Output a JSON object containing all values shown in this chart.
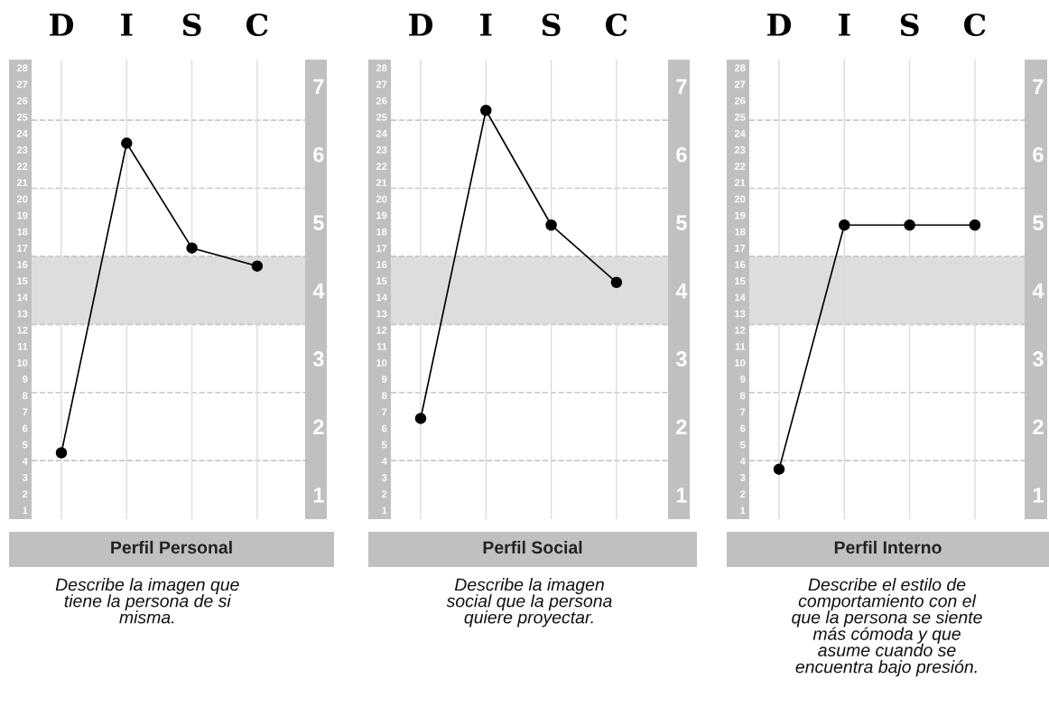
{
  "chart_data": [
    {
      "type": "line",
      "xlabel": "Perfil Personal",
      "categories": [
        "D",
        "I",
        "S",
        "C"
      ],
      "series": [
        {
          "color": "#000000",
          "values": [
            4.5,
            23.4,
            17.0,
            15.9
          ]
        }
      ],
      "marker": "circle",
      "line_style": "solid",
      "grid": "x",
      "ylim": [
        0.45,
        28.5
      ],
      "yticks": [
        1,
        2,
        3,
        4,
        5,
        6,
        7,
        8,
        9,
        10,
        11,
        12,
        13,
        14,
        15,
        16,
        17,
        18,
        19,
        20,
        21,
        22,
        23,
        24,
        25,
        26,
        27,
        28
      ],
      "y2lim": [
        0.64,
        7.39
      ],
      "y2ticks": [
        1,
        2,
        3,
        4,
        5,
        6,
        7
      ],
      "ref_lines": [
        {
          "axis": "y2",
          "value": 1.5,
          "line_style": "dashed",
          "color": "#c8c8c8"
        },
        {
          "axis": "y2",
          "value": 2.5,
          "line_style": "dashed",
          "color": "#c8c8c8"
        },
        {
          "axis": "y2",
          "value": 3.5,
          "line_style": "dashed",
          "color": "#c8c8c8"
        },
        {
          "axis": "y2",
          "value": 4.5,
          "line_style": "dashed",
          "color": "#c8c8c8"
        },
        {
          "axis": "y2",
          "value": 5.5,
          "line_style": "dashed",
          "color": "#c8c8c8"
        },
        {
          "axis": "y2",
          "value": 6.5,
          "line_style": "dashed",
          "color": "#c8c8c8"
        }
      ],
      "bands": [
        {
          "axis": "y2",
          "from": 3.5,
          "to": 4.5,
          "color": "#dddddd"
        }
      ],
      "annotations": [
        "Describe la imagen que\ntiene la persona de si\nmisma."
      ]
    },
    {
      "type": "line",
      "xlabel": "Perfil Social",
      "categories": [
        "D",
        "I",
        "S",
        "C"
      ],
      "series": [
        {
          "color": "#000000",
          "values": [
            6.6,
            25.4,
            18.4,
            14.9
          ]
        }
      ],
      "marker": "circle",
      "line_style": "solid",
      "grid": "x",
      "ylim": [
        0.45,
        28.5
      ],
      "yticks": [
        1,
        2,
        3,
        4,
        5,
        6,
        7,
        8,
        9,
        10,
        11,
        12,
        13,
        14,
        15,
        16,
        17,
        18,
        19,
        20,
        21,
        22,
        23,
        24,
        25,
        26,
        27,
        28
      ],
      "y2lim": [
        0.64,
        7.39
      ],
      "y2ticks": [
        1,
        2,
        3,
        4,
        5,
        6,
        7
      ],
      "ref_lines": [
        {
          "axis": "y2",
          "value": 1.5,
          "line_style": "dashed",
          "color": "#c8c8c8"
        },
        {
          "axis": "y2",
          "value": 2.5,
          "line_style": "dashed",
          "color": "#c8c8c8"
        },
        {
          "axis": "y2",
          "value": 3.5,
          "line_style": "dashed",
          "color": "#c8c8c8"
        },
        {
          "axis": "y2",
          "value": 4.5,
          "line_style": "dashed",
          "color": "#c8c8c8"
        },
        {
          "axis": "y2",
          "value": 5.5,
          "line_style": "dashed",
          "color": "#c8c8c8"
        },
        {
          "axis": "y2",
          "value": 6.5,
          "line_style": "dashed",
          "color": "#c8c8c8"
        }
      ],
      "bands": [
        {
          "axis": "y2",
          "from": 3.5,
          "to": 4.5,
          "color": "#dddddd"
        }
      ],
      "annotations": [
        "Describe la imagen\nsocial que la persona\nquiere proyectar."
      ]
    },
    {
      "type": "line",
      "xlabel": "Perfil Interno",
      "categories": [
        "D",
        "I",
        "S",
        "C"
      ],
      "series": [
        {
          "color": "#000000",
          "values": [
            3.5,
            18.4,
            18.4,
            18.4
          ]
        }
      ],
      "marker": "circle",
      "line_style": "solid",
      "grid": "x",
      "ylim": [
        0.45,
        28.5
      ],
      "yticks": [
        1,
        2,
        3,
        4,
        5,
        6,
        7,
        8,
        9,
        10,
        11,
        12,
        13,
        14,
        15,
        16,
        17,
        18,
        19,
        20,
        21,
        22,
        23,
        24,
        25,
        26,
        27,
        28
      ],
      "y2lim": [
        0.64,
        7.39
      ],
      "y2ticks": [
        1,
        2,
        3,
        4,
        5,
        6,
        7
      ],
      "ref_lines": [
        {
          "axis": "y2",
          "value": 1.5,
          "line_style": "dashed",
          "color": "#c8c8c8"
        },
        {
          "axis": "y2",
          "value": 2.5,
          "line_style": "dashed",
          "color": "#c8c8c8"
        },
        {
          "axis": "y2",
          "value": 3.5,
          "line_style": "dashed",
          "color": "#c8c8c8"
        },
        {
          "axis": "y2",
          "value": 4.5,
          "line_style": "dashed",
          "color": "#c8c8c8"
        },
        {
          "axis": "y2",
          "value": 5.5,
          "line_style": "dashed",
          "color": "#c8c8c8"
        },
        {
          "axis": "y2",
          "value": 6.5,
          "line_style": "dashed",
          "color": "#c8c8c8"
        }
      ],
      "bands": [
        {
          "axis": "y2",
          "from": 3.5,
          "to": 4.5,
          "color": "#dddddd"
        }
      ],
      "annotations": [
        "Describe el estilo de\ncomportamiento con el\nque la persona se siente\nmás cómoda y que\nasume cuando se\nencuentra bajo presión."
      ]
    }
  ]
}
